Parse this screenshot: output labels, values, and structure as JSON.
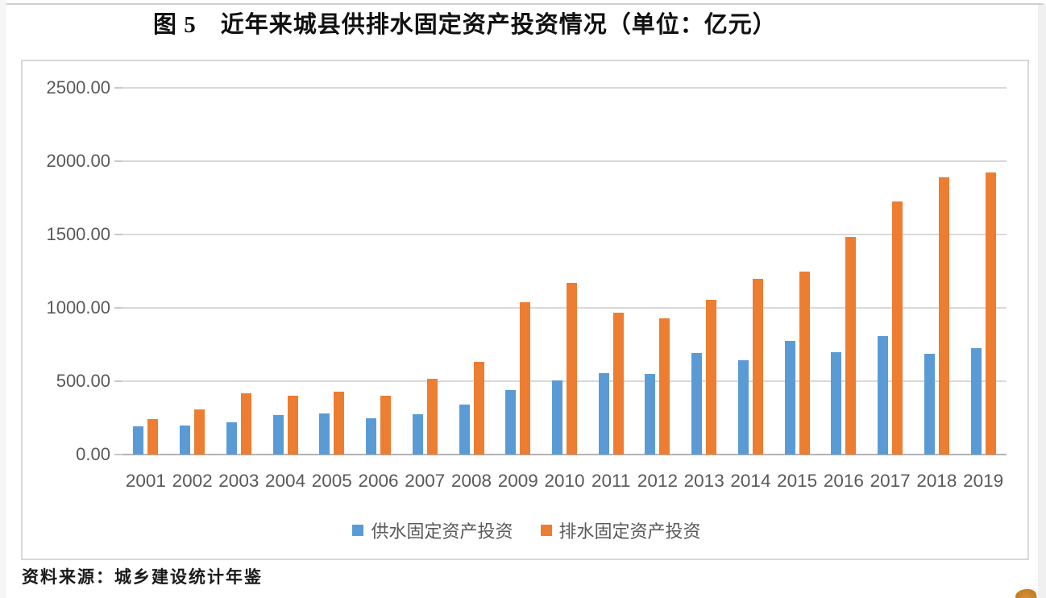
{
  "title": "图 5　近年来城县供排水固定资产投资情况（单位：亿元）",
  "source_note": "资料来源：城乡建设统计年鉴",
  "colors": {
    "supply_series": "#5B9BD5",
    "drainage_series": "#ED7D31",
    "gridline": "#D9D9D9",
    "axis_line": "#B3B3B3",
    "tick_text": "#595959"
  },
  "chart_data": {
    "type": "bar",
    "title": "图 5　近年来城县供排水固定资产投资情况（单位：亿元）",
    "xlabel": "",
    "ylabel": "",
    "ylim": [
      0,
      2500
    ],
    "ytick_interval": 500,
    "ytick_labels": [
      "0.00",
      "500.00",
      "1000.00",
      "1500.00",
      "2000.00",
      "2500.00"
    ],
    "grid": true,
    "legend_position": "bottom",
    "categories": [
      "2001",
      "2002",
      "2003",
      "2004",
      "2005",
      "2006",
      "2007",
      "2008",
      "2009",
      "2010",
      "2011",
      "2012",
      "2013",
      "2014",
      "2015",
      "2016",
      "2017",
      "2018",
      "2019"
    ],
    "series": [
      {
        "name": "供水固定资产投资",
        "key": "supply",
        "color": "#5B9BD5",
        "values": [
          193,
          200,
          220,
          268,
          280,
          250,
          275,
          343,
          440,
          507,
          553,
          548,
          690,
          643,
          772,
          700,
          806,
          685,
          725
        ]
      },
      {
        "name": "排水固定资产投资",
        "key": "drainage",
        "color": "#ED7D31",
        "values": [
          243,
          305,
          415,
          400,
          430,
          400,
          516,
          633,
          1036,
          1170,
          965,
          928,
          1053,
          1196,
          1249,
          1483,
          1727,
          1890,
          1922
        ]
      }
    ]
  }
}
